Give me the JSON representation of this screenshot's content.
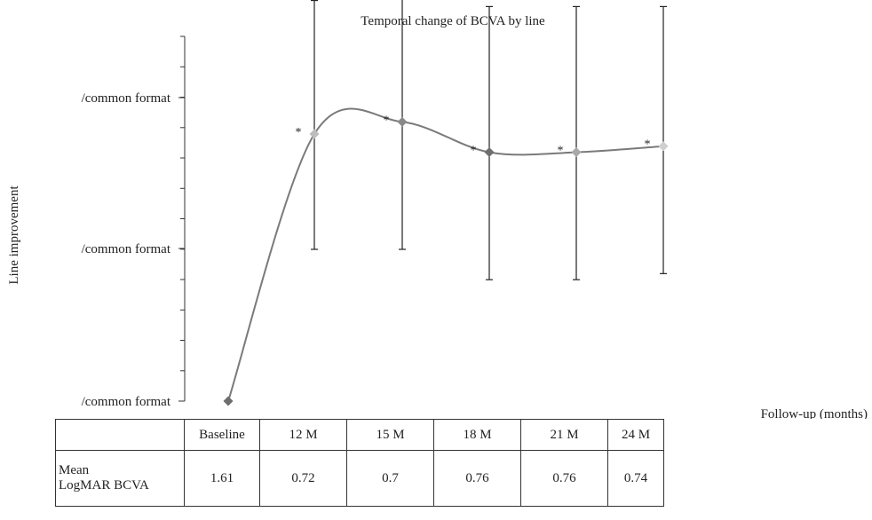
{
  "chart_data": {
    "type": "line",
    "title": "Temporal change of BCVA by line",
    "ylabel": "Line improvement",
    "xlabel": "Follow-up (months)",
    "y_tick_labels": [
      "/common format",
      "/common format",
      "/common format"
    ],
    "categories": [
      "Baseline",
      "12 M",
      "15 M",
      "18 M",
      "21 M",
      "24 M"
    ],
    "values": [
      0.0,
      8.8,
      9.2,
      8.2,
      8.2,
      8.4
    ],
    "error_low": [
      null,
      3.8,
      4.2,
      4.2,
      4.2,
      4.2
    ],
    "error_high": [
      null,
      4.4,
      4.2,
      4.8,
      4.8,
      4.6
    ],
    "significance": [
      "",
      "*",
      "*",
      "*",
      "*",
      "*"
    ],
    "ylim": [
      0,
      10
    ],
    "marker_colors": [
      "#6e6e6e",
      "#bdbdbd",
      "#8a8a8a",
      "#6e6e6e",
      "#a8a8a8",
      "#cfcfcf"
    ],
    "line_color": "#7a7a7a",
    "grid": false
  },
  "table": {
    "header": [
      "",
      "Baseline",
      "12 M",
      "15 M",
      "18 M",
      "21 M",
      "24 M"
    ],
    "row_label_lines": [
      "Mean",
      "LogMAR BCVA"
    ],
    "row_values": [
      "1.61",
      "0.72",
      "0.7",
      "0.76",
      "0.76",
      "0.74"
    ]
  }
}
